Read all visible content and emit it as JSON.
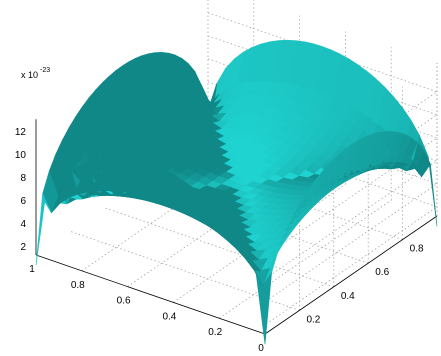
{
  "chart_data": {
    "type": "surface",
    "title": "",
    "xlabel": "",
    "ylabel": "",
    "zlabel": "",
    "z_scale_label": "x 10",
    "z_scale_exponent": "-23",
    "x_ticks": [
      "1",
      "0.8",
      "0.6",
      "0.4",
      "0.2",
      "0"
    ],
    "y_ticks": [
      "0.2",
      "0.4",
      "0.6",
      "0.8"
    ],
    "z_ticks": [
      "2",
      "4",
      "6",
      "8",
      "10",
      "12"
    ],
    "xlim": [
      0,
      1
    ],
    "ylim": [
      0,
      1
    ],
    "zlim": [
      1,
      13
    ],
    "grid": true,
    "surface_color": "#1fd3d0",
    "surface_shade_color": "#0b6f70",
    "surface": {
      "description_points": [
        {
          "x": 0,
          "y": 0,
          "z": 0.3
        },
        {
          "x": 1,
          "y": 0,
          "z": 0.3
        },
        {
          "x": 0,
          "y": 1,
          "z": 0.3
        },
        {
          "x": 1,
          "y": 1,
          "z": 0.3
        },
        {
          "x": 0.5,
          "y": 0.5,
          "z": 9.5
        },
        {
          "x": 0.5,
          "y": 0,
          "z": 12.5
        },
        {
          "x": 0,
          "y": 0.5,
          "z": 12.5
        },
        {
          "x": 0.5,
          "y": 1,
          "z": 12.5
        },
        {
          "x": 1,
          "y": 0.5,
          "z": 12.5
        }
      ]
    }
  }
}
